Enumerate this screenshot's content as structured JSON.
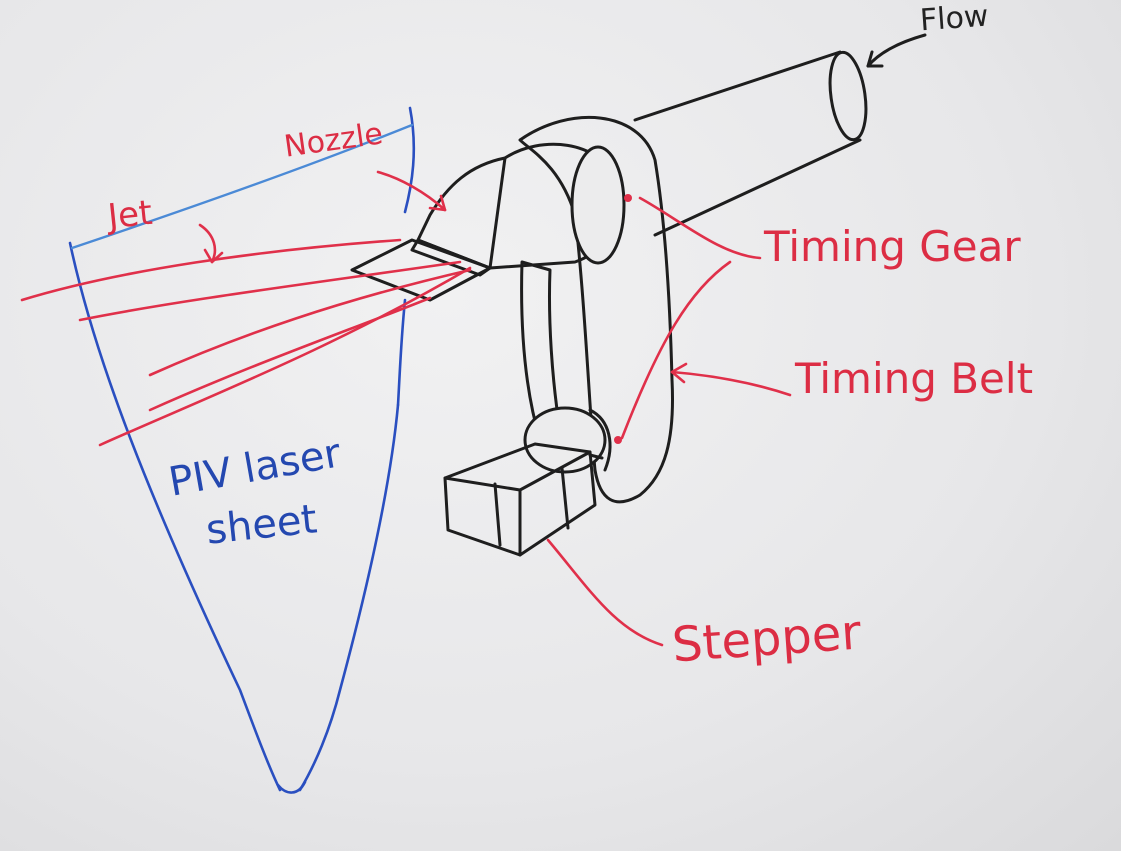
{
  "labels": {
    "flow": "Flow",
    "nozzle": "Nozzle",
    "jet": "Jet",
    "timing_gear": "Timing Gear",
    "timing_belt": "Timing Belt",
    "stepper": "Stepper",
    "piv_line1": "PIV laser",
    "piv_line2": "sheet"
  },
  "colors": {
    "black_marker": "#1e1e1e",
    "red_marker": "#e0304a",
    "blue_marker": "#2a4fc0",
    "light_blue_marker": "#4b8ad6",
    "whiteboard": "#ececed"
  }
}
